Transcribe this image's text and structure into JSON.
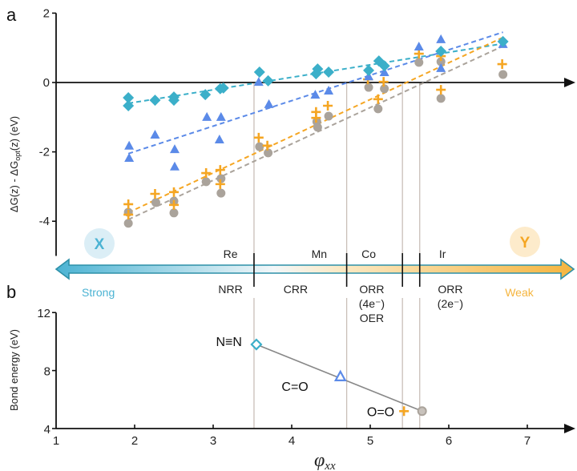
{
  "chart_data": [
    {
      "panel": "a",
      "type": "scatter",
      "ylabel": "ΔG(z) - ΔGopt(z) (eV)",
      "ylabel_parts": {
        "pre": "ΔG(z) - ΔG",
        "sub": "opt",
        "post": "(z) (eV)"
      },
      "ylim": [
        -5,
        2
      ],
      "yticks": [
        2,
        0,
        -2,
        -4
      ],
      "xlim": [
        1,
        7.5
      ],
      "series": [
        {
          "name": "diamond-cyan",
          "marker": "diamond",
          "color": "#3bafc9",
          "points": [
            [
              1.92,
              -0.44
            ],
            [
              1.92,
              -0.67
            ],
            [
              2.26,
              -0.51
            ],
            [
              2.5,
              -0.42
            ],
            [
              2.5,
              -0.51
            ],
            [
              2.9,
              -0.35
            ],
            [
              3.09,
              -0.18
            ],
            [
              3.13,
              -0.16
            ],
            [
              3.59,
              0.3
            ],
            [
              3.7,
              0.05
            ],
            [
              4.31,
              0.25
            ],
            [
              4.33,
              0.39
            ],
            [
              4.47,
              0.3
            ],
            [
              4.98,
              0.35
            ],
            [
              5.11,
              0.62
            ],
            [
              5.18,
              0.48
            ],
            [
              5.9,
              0.9
            ],
            [
              6.69,
              1.18
            ]
          ],
          "trend": [
            [
              1.92,
              -0.6
            ],
            [
              6.69,
              1.12
            ]
          ]
        },
        {
          "name": "triangle-blue",
          "marker": "triangle",
          "color": "#5b8ae8",
          "points": [
            [
              1.93,
              -1.82
            ],
            [
              1.93,
              -2.17
            ],
            [
              2.26,
              -1.5
            ],
            [
              2.51,
              -1.92
            ],
            [
              2.51,
              -2.42
            ],
            [
              2.92,
              -0.99
            ],
            [
              3.08,
              -1.64
            ],
            [
              3.1,
              -0.99
            ],
            [
              3.58,
              0.02
            ],
            [
              3.71,
              -0.62
            ],
            [
              4.3,
              -0.35
            ],
            [
              4.47,
              -0.23
            ],
            [
              4.98,
              0.18
            ],
            [
              5.18,
              0.3
            ],
            [
              5.62,
              1.04
            ],
            [
              5.9,
              1.25
            ],
            [
              5.9,
              0.42
            ],
            [
              6.69,
              1.11
            ]
          ],
          "trend": [
            [
              1.92,
              -2.05
            ],
            [
              6.69,
              1.45
            ]
          ]
        },
        {
          "name": "cross-orange",
          "marker": "cross",
          "color": "#f5a623",
          "points": [
            [
              1.92,
              -3.51
            ],
            [
              1.92,
              -3.81
            ],
            [
              2.26,
              -3.21
            ],
            [
              2.5,
              -3.16
            ],
            [
              2.5,
              -3.53
            ],
            [
              2.91,
              -2.61
            ],
            [
              3.09,
              -2.52
            ],
            [
              3.09,
              -2.93
            ],
            [
              3.58,
              -1.59
            ],
            [
              3.69,
              -1.82
            ],
            [
              4.31,
              -0.85
            ],
            [
              4.31,
              -1.02
            ],
            [
              4.46,
              -0.67
            ],
            [
              4.97,
              0.09
            ],
            [
              5.17,
              0.02
            ],
            [
              5.1,
              -0.48
            ],
            [
              5.62,
              0.83
            ],
            [
              5.9,
              0.76
            ],
            [
              5.9,
              -0.21
            ],
            [
              6.68,
              0.53
            ]
          ],
          "trend": [
            [
              1.92,
              -3.75
            ],
            [
              6.69,
              1.3
            ]
          ]
        },
        {
          "name": "circle-gray",
          "marker": "circle",
          "color": "#aaa39b",
          "points": [
            [
              1.92,
              -3.74
            ],
            [
              1.92,
              -4.06
            ],
            [
              2.27,
              -3.46
            ],
            [
              2.5,
              -3.42
            ],
            [
              2.5,
              -3.76
            ],
            [
              2.91,
              -2.86
            ],
            [
              3.1,
              -2.77
            ],
            [
              3.1,
              -3.19
            ],
            [
              3.59,
              -1.85
            ],
            [
              3.7,
              -2.03
            ],
            [
              4.32,
              -1.13
            ],
            [
              4.33,
              -1.29
            ],
            [
              4.47,
              -0.97
            ],
            [
              4.98,
              -0.14
            ],
            [
              5.18,
              -0.18
            ],
            [
              5.1,
              -0.76
            ],
            [
              5.62,
              0.58
            ],
            [
              5.9,
              0.6
            ],
            [
              5.9,
              -0.46
            ],
            [
              6.69,
              0.23
            ]
          ],
          "trend": [
            [
              1.92,
              -3.95
            ],
            [
              6.69,
              1.05
            ]
          ]
        }
      ],
      "vertical_lines_x": [
        3.52,
        4.7,
        5.41,
        5.63
      ]
    },
    {
      "panel": "b",
      "type": "line",
      "ylabel": "Bond energy (eV)",
      "ylim": [
        4,
        12
      ],
      "yticks": [
        12,
        8,
        4
      ],
      "xlabel": "φxx",
      "xlabel_parts": {
        "main": "φ",
        "sub": "xx"
      },
      "xlim": [
        1,
        7.5
      ],
      "xticks": [
        1,
        2,
        3,
        4,
        5,
        6,
        7
      ],
      "points": [
        {
          "label": "N≡N",
          "x": 3.55,
          "y": 9.8,
          "marker": "diamond-open",
          "color": "#3bafc9"
        },
        {
          "label": "C=O",
          "x": 4.62,
          "y": 7.6,
          "marker": "triangle-open",
          "color": "#5b8ae8"
        },
        {
          "label": "O=O",
          "x": 5.43,
          "y": 5.2,
          "marker": "cross",
          "color": "#f5a623"
        },
        {
          "label": "",
          "x": 5.66,
          "y": 5.2,
          "marker": "circle-open",
          "color": "#aaa39b"
        }
      ],
      "line": [
        [
          3.55,
          9.8
        ],
        [
          5.66,
          5.2
        ]
      ],
      "vertical_lines_x": [
        3.52,
        4.7,
        5.41,
        5.63
      ]
    }
  ],
  "panel_labels": {
    "a": "a",
    "b": "b"
  },
  "scale_bar": {
    "left_label": "Strong",
    "right_label": "Weak",
    "left_badge": "X",
    "right_badge": "Y",
    "left_color": "#4bb3d3",
    "right_color": "#f5b53f",
    "dividers_x": [
      3.52,
      4.7,
      5.41,
      5.63
    ],
    "metals": [
      {
        "name": "Re",
        "x": 3.22
      },
      {
        "name": "Mn",
        "x": 4.35
      },
      {
        "name": "Co",
        "x": 4.98
      },
      {
        "name": "Ir",
        "x": 5.92
      }
    ],
    "reactions": [
      {
        "lines": [
          "NRR"
        ],
        "x": 3.22
      },
      {
        "lines": [
          "CRR"
        ],
        "x": 4.05
      },
      {
        "lines": [
          "ORR",
          "(4e⁻)",
          "OER"
        ],
        "x": 5.02
      },
      {
        "lines": [
          "ORR",
          "(2e⁻)"
        ],
        "x": 6.02
      }
    ]
  }
}
